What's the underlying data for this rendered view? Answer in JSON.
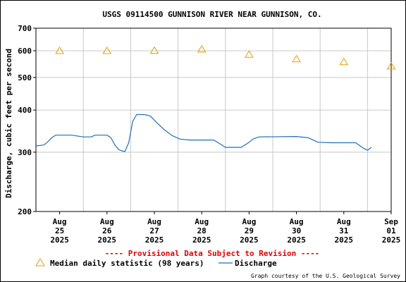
{
  "chart_data": {
    "type": "line",
    "title": "USGS 09114500 GUNNISON RIVER NEAR GUNNISON, CO.",
    "ylabel": "Discharge, cubic feet per second",
    "y_scale": "log",
    "ylim": [
      200,
      700
    ],
    "y_ticks": [
      {
        "value": 200,
        "label": "200"
      },
      {
        "value": 300,
        "label": "300"
      },
      {
        "value": 400,
        "label": "400"
      },
      {
        "value": 500,
        "label": "500"
      },
      {
        "value": 600,
        "label": "600"
      },
      {
        "value": 700,
        "label": "700"
      }
    ],
    "xlim": [
      "2025-08-25T00:00",
      "2025-09-01T12:00"
    ],
    "x_ticks": [
      {
        "value": "2025-08-25T12:00",
        "lines": [
          "Aug",
          "25",
          "2025"
        ]
      },
      {
        "value": "2025-08-26T12:00",
        "lines": [
          "Aug",
          "26",
          "2025"
        ]
      },
      {
        "value": "2025-08-27T12:00",
        "lines": [
          "Aug",
          "27",
          "2025"
        ]
      },
      {
        "value": "2025-08-28T12:00",
        "lines": [
          "Aug",
          "28",
          "2025"
        ]
      },
      {
        "value": "2025-08-29T12:00",
        "lines": [
          "Aug",
          "29",
          "2025"
        ]
      },
      {
        "value": "2025-08-30T12:00",
        "lines": [
          "Aug",
          "30",
          "2025"
        ]
      },
      {
        "value": "2025-08-31T12:00",
        "lines": [
          "Aug",
          "31",
          "2025"
        ]
      },
      {
        "value": "2025-09-01T12:00",
        "lines": [
          "Sep",
          "01",
          "2025"
        ]
      }
    ],
    "grid": true,
    "series": [
      {
        "name": "Median daily statistic (98 years)",
        "kind": "marker",
        "color": "#e0a000",
        "points": [
          {
            "x": "2025-08-25T12:00",
            "y": 600
          },
          {
            "x": "2025-08-26T12:00",
            "y": 600
          },
          {
            "x": "2025-08-27T12:00",
            "y": 601
          },
          {
            "x": "2025-08-28T12:00",
            "y": 606
          },
          {
            "x": "2025-08-29T12:00",
            "y": 585
          },
          {
            "x": "2025-08-30T12:00",
            "y": 567
          },
          {
            "x": "2025-08-31T12:00",
            "y": 556
          },
          {
            "x": "2025-09-01T12:00",
            "y": 540
          }
        ]
      },
      {
        "name": "Discharge",
        "kind": "line",
        "color": "#1f6fb4",
        "points": [
          {
            "x": "2025-08-25T00:00",
            "y": 313
          },
          {
            "x": "2025-08-25T04:00",
            "y": 315
          },
          {
            "x": "2025-08-25T06:00",
            "y": 322
          },
          {
            "x": "2025-08-25T08:00",
            "y": 331
          },
          {
            "x": "2025-08-25T10:00",
            "y": 337
          },
          {
            "x": "2025-08-25T18:00",
            "y": 337
          },
          {
            "x": "2025-08-26T00:00",
            "y": 333
          },
          {
            "x": "2025-08-26T04:00",
            "y": 333
          },
          {
            "x": "2025-08-26T06:00",
            "y": 337
          },
          {
            "x": "2025-08-26T12:00",
            "y": 337
          },
          {
            "x": "2025-08-26T14:00",
            "y": 331
          },
          {
            "x": "2025-08-26T16:00",
            "y": 315
          },
          {
            "x": "2025-08-26T18:00",
            "y": 305
          },
          {
            "x": "2025-08-26T21:00",
            "y": 301
          },
          {
            "x": "2025-08-26T23:00",
            "y": 320
          },
          {
            "x": "2025-08-27T01:00",
            "y": 370
          },
          {
            "x": "2025-08-27T03:00",
            "y": 388
          },
          {
            "x": "2025-08-27T07:00",
            "y": 388
          },
          {
            "x": "2025-08-27T10:00",
            "y": 384
          },
          {
            "x": "2025-08-27T13:00",
            "y": 368
          },
          {
            "x": "2025-08-27T17:00",
            "y": 350
          },
          {
            "x": "2025-08-27T21:00",
            "y": 336
          },
          {
            "x": "2025-08-28T01:00",
            "y": 328
          },
          {
            "x": "2025-08-28T06:00",
            "y": 326
          },
          {
            "x": "2025-08-28T18:00",
            "y": 326
          },
          {
            "x": "2025-08-28T20:00",
            "y": 321
          },
          {
            "x": "2025-08-29T00:00",
            "y": 310
          },
          {
            "x": "2025-08-29T08:00",
            "y": 310
          },
          {
            "x": "2025-08-29T11:00",
            "y": 318
          },
          {
            "x": "2025-08-29T14:00",
            "y": 328
          },
          {
            "x": "2025-08-29T17:00",
            "y": 333
          },
          {
            "x": "2025-08-30T12:00",
            "y": 334
          },
          {
            "x": "2025-08-30T18:00",
            "y": 331
          },
          {
            "x": "2025-08-30T23:00",
            "y": 321
          },
          {
            "x": "2025-08-31T06:00",
            "y": 320
          },
          {
            "x": "2025-08-31T18:00",
            "y": 320
          },
          {
            "x": "2025-08-31T22:00",
            "y": 308
          },
          {
            "x": "2025-09-01T00:00",
            "y": 304
          },
          {
            "x": "2025-09-01T02:00",
            "y": 310
          }
        ]
      }
    ]
  },
  "notice": "---- Provisional Data Subject to Revision ----",
  "notice_color": "#dd0000",
  "credit": "Graph courtesy of the U.S. Geological Survey",
  "legend": {
    "median_label": "Median daily statistic (98 years)",
    "discharge_label": "Discharge",
    "median_icon": "triangle-marker-icon",
    "discharge_icon": "line-swatch-icon"
  }
}
